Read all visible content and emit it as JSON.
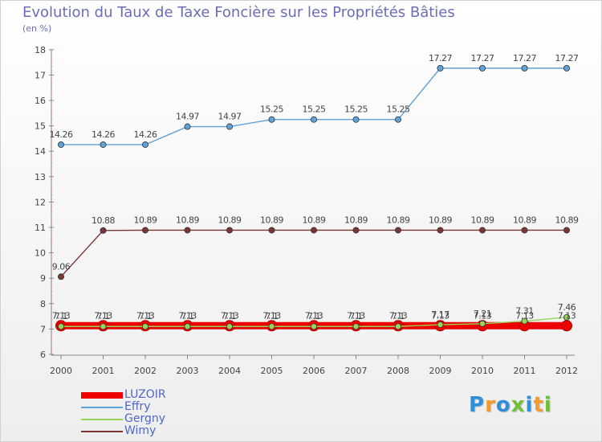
{
  "title": "Evolution du Taux de Taxe Foncière sur les Propriétés Bâties",
  "unit": "(en %)",
  "brand": "Proxiti",
  "chart_data": {
    "type": "line",
    "title": "Evolution du Taux de Taxe Foncière sur les Propriétés Bâties",
    "ylabel": "(en %)",
    "xlabel": "",
    "x": [
      "2000",
      "2001",
      "2002",
      "2003",
      "2004",
      "2005",
      "2006",
      "2007",
      "2008",
      "2009",
      "2010",
      "2011",
      "2012"
    ],
    "ylim": [
      6,
      18
    ],
    "yticks": [
      6,
      7,
      8,
      9,
      10,
      11,
      12,
      13,
      14,
      15,
      16,
      17,
      18
    ],
    "grid": false,
    "legend_position": "bottom-left",
    "series": [
      {
        "name": "LUZOIR",
        "color": "#ee0000",
        "values": [
          7.13,
          7.13,
          7.13,
          7.13,
          7.13,
          7.13,
          7.13,
          7.13,
          7.13,
          7.13,
          7.13,
          7.13,
          7.13
        ]
      },
      {
        "name": "Effry",
        "color": "#5fa2d6",
        "values": [
          14.26,
          14.26,
          14.26,
          14.97,
          14.97,
          15.25,
          15.25,
          15.25,
          15.25,
          17.27,
          17.27,
          17.27,
          17.27
        ]
      },
      {
        "name": "Gergny",
        "color": "#99d45a",
        "values": [
          7.1,
          7.1,
          7.1,
          7.1,
          7.1,
          7.1,
          7.1,
          7.1,
          7.1,
          7.17,
          7.21,
          7.31,
          7.46
        ]
      },
      {
        "name": "Wimy",
        "color": "#7a3535",
        "values": [
          9.06,
          10.88,
          10.89,
          10.89,
          10.89,
          10.89,
          10.89,
          10.89,
          10.89,
          10.89,
          10.89,
          10.89,
          10.89
        ]
      }
    ]
  }
}
